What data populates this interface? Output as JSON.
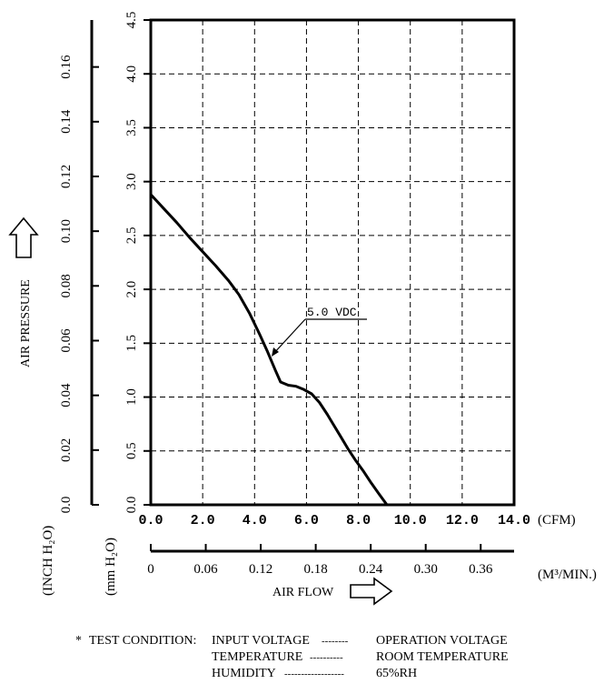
{
  "chart_data": {
    "type": "line",
    "title": "",
    "xlabel": "AIR FLOW",
    "ylabel": "AIR PRESSURE",
    "x_unit_primary": "(CFM)",
    "x_unit_secondary": "(M³/MIN.)",
    "y_unit_outer": "(INCH H₂O)",
    "y_unit_inner": "(mm H₂O)",
    "xlim": [
      0,
      14
    ],
    "ylim_mm": [
      0,
      4.5
    ],
    "x_ticks_cfm": [
      "0.0",
      "2.0",
      "4.0",
      "6.0",
      "8.0",
      "10.0",
      "12.0",
      "14.0"
    ],
    "x_ticks_m3": [
      "0",
      "0.06",
      "0.12",
      "0.18",
      "0.24",
      "0.30",
      "0.36"
    ],
    "y_ticks_mm": [
      "0.0",
      "0.5",
      "1.0",
      "1.5",
      "2.0",
      "2.5",
      "3.0",
      "3.5",
      "4.0",
      "4.5"
    ],
    "y_ticks_inch": [
      "0.0",
      "0.02",
      "0.04",
      "0.06",
      "0.08",
      "0.10",
      "0.12",
      "0.14",
      "0.16"
    ],
    "grid": true,
    "series": [
      {
        "name": "5.0 VDC",
        "x": [
          0,
          0.5,
          1.0,
          1.5,
          2.0,
          2.5,
          3.0,
          3.4,
          3.8,
          4.2,
          4.5,
          4.8,
          5.0,
          5.3,
          5.6,
          5.9,
          6.2,
          6.5,
          6.8,
          7.0,
          7.3,
          7.6,
          7.9,
          8.2,
          8.5,
          8.8,
          9.1
        ],
        "y": [
          2.88,
          2.75,
          2.62,
          2.48,
          2.35,
          2.22,
          2.08,
          1.95,
          1.78,
          1.58,
          1.42,
          1.25,
          1.14,
          1.11,
          1.1,
          1.07,
          1.03,
          0.95,
          0.84,
          0.76,
          0.64,
          0.52,
          0.41,
          0.31,
          0.2,
          0.1,
          0.0
        ]
      }
    ],
    "annotation": "5.0 VDC"
  },
  "footnote": {
    "star": "*",
    "header": "TEST CONDITION:",
    "rows": [
      {
        "label": "INPUT VOLTAGE",
        "dashes": "--------",
        "value": "OPERATION VOLTAGE"
      },
      {
        "label": "TEMPERATURE",
        "dashes": "----------",
        "value": "ROOM TEMPERATURE"
      },
      {
        "label": "HUMIDITY",
        "dashes": "------------------",
        "value": "65%RH"
      }
    ]
  },
  "colors": {
    "ink": "#000000",
    "background": "#ffffff"
  }
}
